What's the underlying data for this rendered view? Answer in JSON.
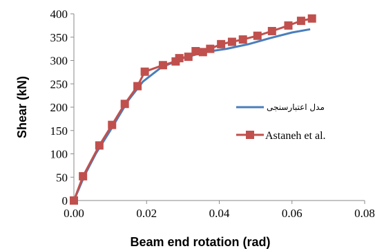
{
  "chart_data": {
    "type": "line",
    "xlabel": "Beam end rotation (rad)",
    "ylabel": "Shear (kN)",
    "xlim": [
      0,
      0.08
    ],
    "ylim": [
      0,
      400
    ],
    "x_ticks": [
      "0.00",
      "0.02",
      "0.04",
      "0.06",
      "0.08"
    ],
    "y_ticks": [
      "0",
      "50",
      "100",
      "150",
      "200",
      "250",
      "300",
      "350",
      "400"
    ],
    "grid": false,
    "legend_placement": "right",
    "series": [
      {
        "name": "مدل اعتبارسنجی",
        "color": "#4a7ebb",
        "marker": "none",
        "x": [
          0,
          0.003,
          0.006,
          0.01,
          0.015,
          0.019,
          0.024,
          0.03,
          0.036,
          0.042,
          0.048,
          0.054,
          0.06,
          0.065
        ],
        "y": [
          0,
          55,
          100,
          150,
          215,
          255,
          285,
          305,
          318,
          325,
          335,
          348,
          360,
          367
        ]
      },
      {
        "name": "Astaneh et al.",
        "color": "#c0504d",
        "marker": "square",
        "x": [
          0,
          0.0025,
          0.007,
          0.0105,
          0.014,
          0.0175,
          0.0195,
          0.0245,
          0.028,
          0.029,
          0.0315,
          0.0335,
          0.0355,
          0.0375,
          0.0405,
          0.0435,
          0.0465,
          0.0505,
          0.0545,
          0.059,
          0.0625,
          0.0655
        ],
        "y": [
          0,
          52,
          118,
          162,
          207,
          245,
          276,
          290,
          298,
          305,
          308,
          320,
          318,
          325,
          335,
          340,
          345,
          353,
          363,
          375,
          385,
          390
        ]
      }
    ]
  }
}
